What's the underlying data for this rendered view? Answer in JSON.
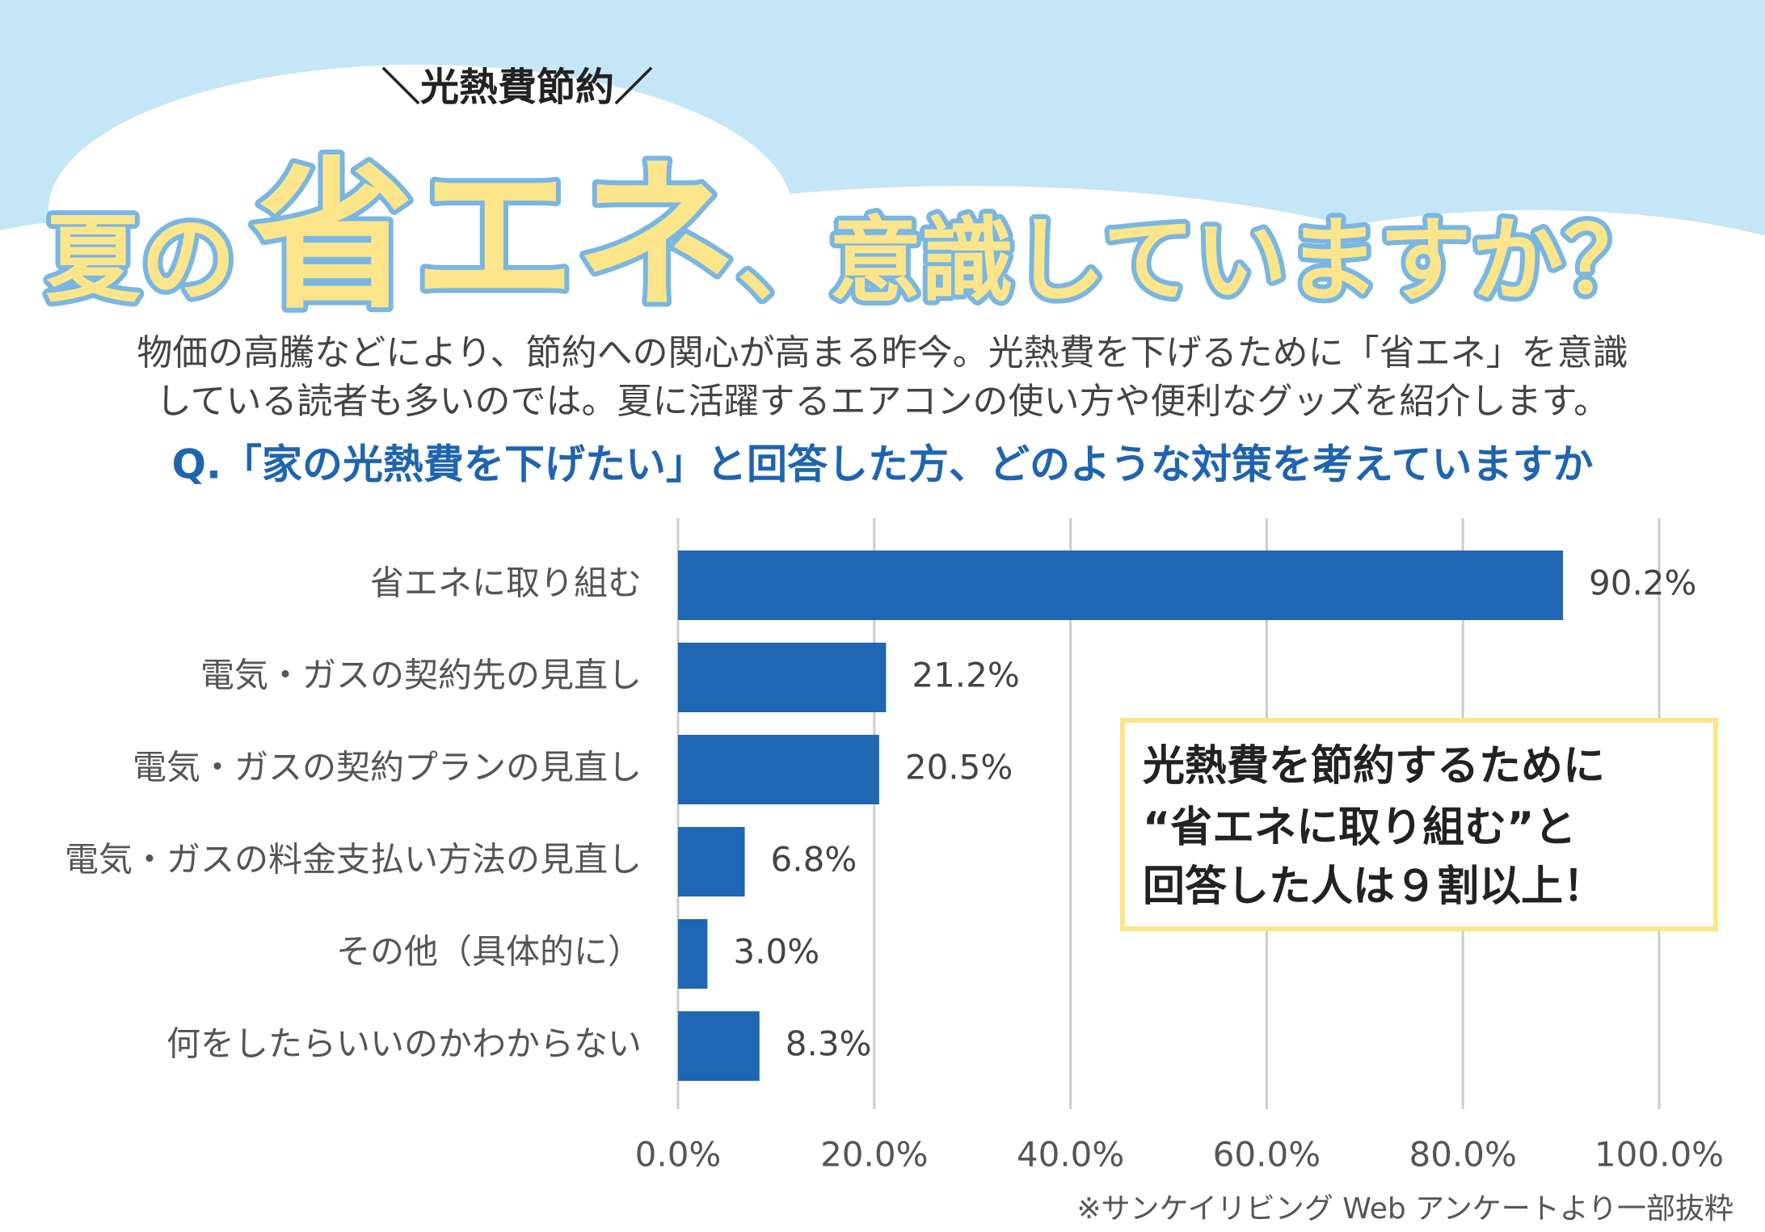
{
  "kicker": "＼光熱費節約／",
  "title_parts": [
    "夏の",
    "省エネ",
    "、意識していますか？"
  ],
  "intro": [
    "物価の高騰などにより、節約への関心が高まる昨今。光熱費を下げるために「省エネ」を意識",
    "している読者も多いのでは。夏に活躍するエアコンの使い方や便利なグッズを紹介します。"
  ],
  "chart_data": {
    "type": "hbar",
    "title": "Q.「家の光熱費を下げたい」と回答した方、どのような対策を考えていますか",
    "categories": [
      "省エネに取り組む",
      "電気・ガスの契約先の見直し",
      "電気・ガスの契約プランの見直し",
      "電気・ガスの料金支払い方法の見直し",
      "その他（具体的に）",
      "何をしたらいいのかわからない"
    ],
    "values": [
      90.2,
      21.2,
      20.5,
      6.8,
      3.0,
      8.3
    ],
    "value_labels": [
      "90.2%",
      "21.2%",
      "20.5%",
      "6.8%",
      "3.0%",
      "8.3%"
    ],
    "color": "#1f66b3",
    "xlim": [
      0,
      100
    ],
    "xticks": [
      {
        "value": 0,
        "label": "0.0%"
      },
      {
        "value": 20,
        "label": "20.0%"
      },
      {
        "value": 40,
        "label": "40.0%"
      },
      {
        "value": 60,
        "label": "60.0%"
      },
      {
        "value": 80,
        "label": "80.0%"
      },
      {
        "value": 100,
        "label": "100.0%"
      }
    ],
    "grid": true,
    "annotation": [
      "光熱費を節約するために",
      "“省エネに取り組む”と",
      "回答した人は９割以上！"
    ],
    "source": "※サンケイリビング Web アンケートより一部抜粋"
  }
}
